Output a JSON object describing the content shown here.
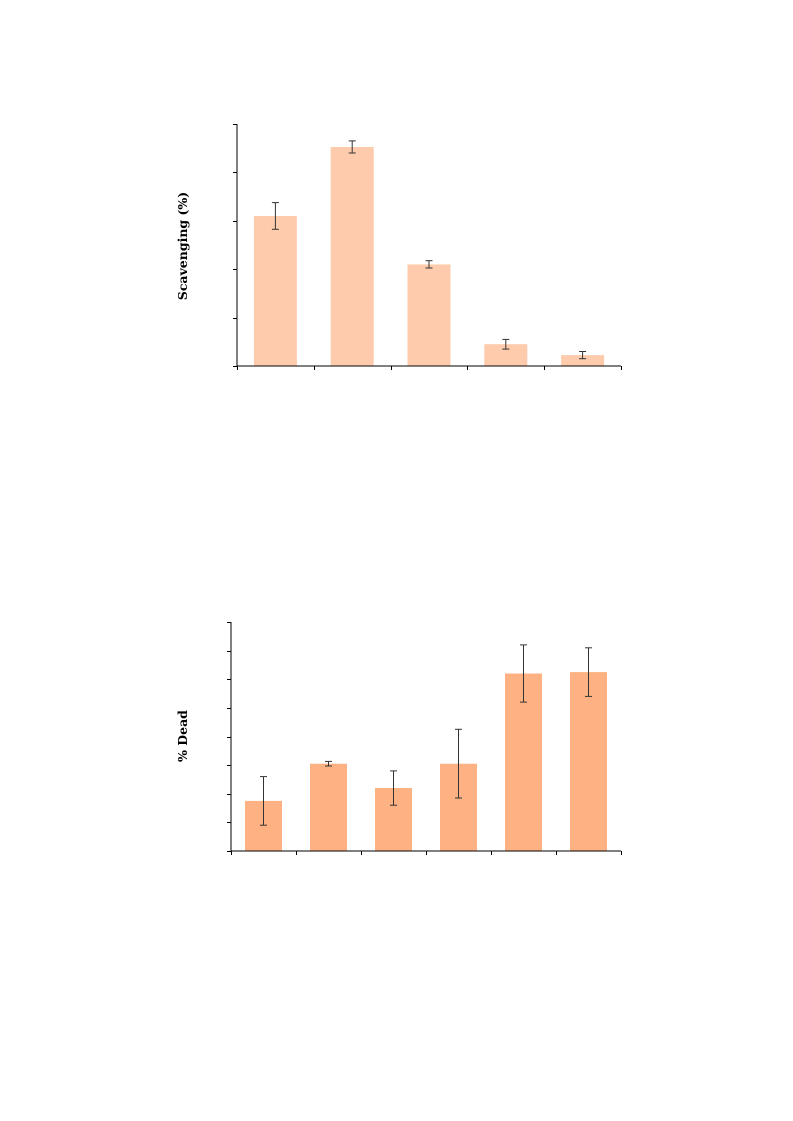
{
  "chart_data": [
    {
      "type": "bar",
      "ylabel": "Scavenging (%)",
      "ylim": [
        0,
        100
      ],
      "yticks": [
        0,
        20,
        40,
        60,
        80,
        100
      ],
      "values": [
        62,
        90.5,
        42,
        9,
        4.5
      ],
      "errors": [
        5.5,
        2.5,
        1.5,
        2,
        1.5
      ],
      "bar_color": "#fecbac",
      "grid": false
    },
    {
      "type": "bar",
      "ylabel": "% Dead",
      "ylim": [
        0,
        80
      ],
      "yticks": [
        0,
        10,
        20,
        30,
        40,
        50,
        60,
        70,
        80
      ],
      "values": [
        17.5,
        30.5,
        22,
        30.5,
        62,
        62.5
      ],
      "errors": [
        8.5,
        0.8,
        6,
        12,
        10,
        8.5
      ],
      "bar_color": "#feb283",
      "grid": false
    }
  ]
}
